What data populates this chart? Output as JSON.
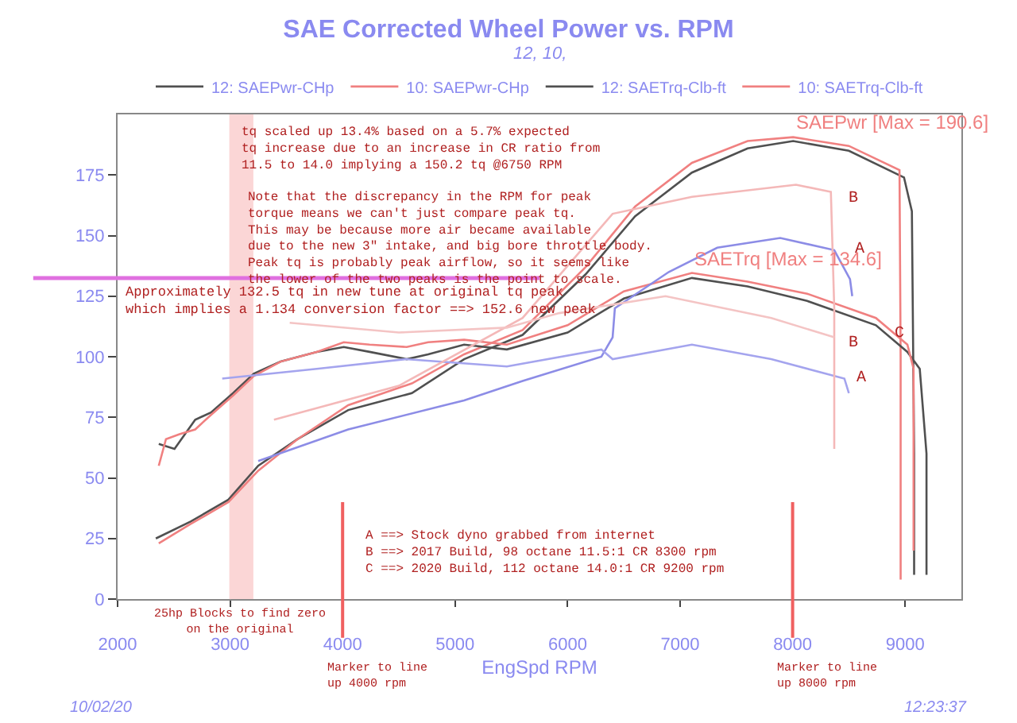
{
  "chart_data": {
    "type": "line",
    "title": "SAE Corrected Wheel Power vs. RPM",
    "subtitle": "12, 10,",
    "xlabel": "EngSpd RPM",
    "xlim": [
      2000,
      9500
    ],
    "xticks": [
      2000,
      3000,
      4000,
      5000,
      6000,
      7000,
      8000,
      9000
    ],
    "ylim": [
      0,
      200
    ],
    "yticks": [
      0,
      25,
      50,
      75,
      100,
      125,
      150,
      175
    ],
    "grid": false,
    "legend": "top",
    "marker": "none",
    "line_style": "solid",
    "series": [
      {
        "name": "12: SAEPwr-CHp",
        "color": "#505050",
        "x": [
          2340,
          2650,
          2985,
          3250,
          3600,
          4050,
          4616,
          5080,
          5600,
          6160,
          6600,
          7105,
          7600,
          8005,
          8500,
          8990,
          9060,
          9080,
          9080
        ],
        "values": [
          25,
          32,
          41,
          55,
          66,
          78,
          85,
          99,
          109,
          134,
          158,
          176,
          186,
          189,
          185,
          174,
          160,
          60,
          10
        ]
      },
      {
        "name": "10: SAEPwr-CHp",
        "color": "#f08080",
        "x": [
          2366,
          2650,
          2985,
          3250,
          3600,
          4050,
          4616,
          5080,
          5600,
          6160,
          6600,
          7105,
          7600,
          8005,
          8500,
          8950,
          8960,
          8960
        ],
        "values": [
          23,
          31,
          40,
          53,
          66,
          80,
          89,
          101,
          111,
          137,
          162,
          180,
          189,
          190.6,
          187,
          177,
          100,
          8
        ]
      },
      {
        "name": "12: SAETrq-Clb-ft",
        "color": "#505050",
        "x": [
          2366,
          2506,
          2690,
          2830,
          3027,
          3210,
          3450,
          3770,
          4010,
          4240,
          4570,
          4760,
          5080,
          5460,
          6000,
          6500,
          7105,
          7600,
          8130,
          8740,
          9020,
          9130,
          9190,
          9190
        ],
        "values": [
          64,
          62,
          74,
          77,
          85,
          93,
          98,
          102,
          104,
          102,
          99,
          101,
          105,
          103,
          110,
          124,
          132.5,
          129,
          123,
          113,
          102,
          95,
          60,
          10
        ]
      },
      {
        "name": "10: SAETrq-Clb-ft",
        "color": "#f08080",
        "x": [
          2366,
          2430,
          2550,
          2690,
          2830,
          3027,
          3210,
          3450,
          3770,
          4010,
          4240,
          4570,
          4760,
          5080,
          5460,
          6000,
          6500,
          7105,
          7600,
          8130,
          8740,
          9020,
          9075,
          9075
        ],
        "values": [
          55,
          66,
          68,
          70,
          76,
          84,
          92,
          98,
          102,
          106,
          105,
          104,
          106,
          107,
          105,
          113,
          127,
          134.6,
          131,
          126,
          116,
          105,
          95,
          20
        ]
      },
      {
        "color": "#8c8ce6",
        "x": [
          3250,
          4050,
          5080,
          5600,
          6300,
          6400,
          6420,
          6900,
          7330,
          7890,
          8370,
          8510,
          8530
        ],
        "values": [
          57,
          70,
          82,
          90,
          100,
          108,
          120,
          135,
          145,
          149,
          144,
          132,
          125
        ]
      },
      {
        "color": "#a4a4ee",
        "x": [
          2930,
          3770,
          4560,
          5460,
          6300,
          6400,
          7105,
          7810,
          8460,
          8500
        ],
        "values": [
          91,
          95,
          99,
          96,
          103,
          99,
          105,
          99,
          91,
          85
        ]
      },
      {
        "color": "#f4b8b8",
        "x": [
          3390,
          4500,
          5600,
          6400,
          7105,
          8030,
          8340,
          8370,
          8370
        ],
        "values": [
          74,
          88,
          116,
          159,
          166,
          171,
          168,
          120,
          62
        ]
      },
      {
        "color": "#f4c4c4",
        "x": [
          3530,
          4500,
          5460,
          5925,
          6870,
          7810,
          8370
        ],
        "values": [
          114,
          110,
          112,
          118,
          125,
          116,
          108
        ]
      }
    ],
    "ref_lines": [
      {
        "axis": "y",
        "value": 132.5,
        "color": "#e070e0",
        "label": "Approximately 132.5 tq in new tune at original tq peak\nwhich implies a 1.134 conversion factor ==> 152.6 new peak"
      },
      {
        "axis": "x",
        "value": 4000,
        "color": "#f06060",
        "label": "Marker to line\nup 4000 rpm"
      },
      {
        "axis": "x",
        "value": 8000,
        "color": "#f06060",
        "label": "Marker to line\nup 8000 rpm"
      }
    ],
    "bands": [
      {
        "axis": "x",
        "from": 3000,
        "to": 3200,
        "color": "#f06060",
        "label": "25hp Blocks to find zero\non the original"
      }
    ],
    "annotations": [
      "tq scaled up 13.4% based on a 5.7% expected\ntq increase due to an increase in CR ratio from\n11.5 to 14.0 implying a 150.2 tq @6750 RPM",
      "Note that the discrepancy in the RPM for peak\ntorque means we can't just compare peak tq.\nThis may be because more air became available\ndue to the new 3\" intake, and big bore throttle body.\nPeak tq is probably peak airflow, so it seems like\nthe lower of the two peaks is the point to scale.",
      "A ==> Stock dyno grabbed from internet\nB ==> 2017 Build, 98 octane 11.5:1 CR 8300 rpm\nC ==> 2020 Build, 112 octane 14.0:1 CR 9200 rpm",
      "10/02/20",
      "12:23:37",
      {
        "text": "SAEPwr [Max = 190.6]",
        "x": 8005,
        "y": 190.6
      },
      {
        "text": "SAETrq [Max = 134.6]",
        "x": 7105,
        "y": 134.6
      },
      "B",
      "A",
      "C",
      "B",
      "A"
    ]
  }
}
